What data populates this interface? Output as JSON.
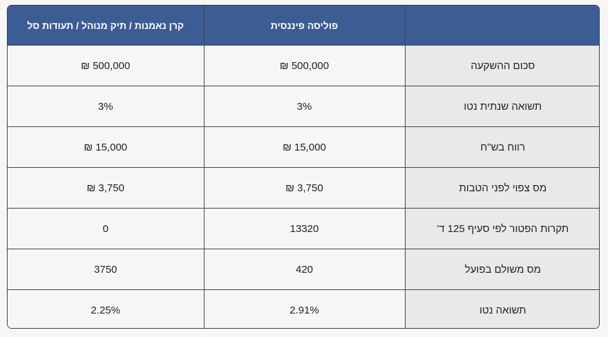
{
  "table": {
    "headers": [
      "",
      "פוליסה פיננסית",
      "קרן נאמנות / תיק מנוהל / תעודות סל"
    ],
    "rows": [
      {
        "label": "סכום ההשקעה",
        "policy": "500,000 ₪",
        "fund": "500,000 ₪"
      },
      {
        "label": "תשואה שנתית נטו",
        "policy": "3%",
        "fund": "3%"
      },
      {
        "label": "רווח בש\"ח",
        "policy": "15,000 ₪",
        "fund": "15,000 ₪"
      },
      {
        "label": "מס צפוי לפני הטבות",
        "policy": "3,750 ₪",
        "fund": "3,750 ₪"
      },
      {
        "label": "תקרות הפטור לפי סעיף 125 ד'",
        "policy": "13320",
        "fund": "0"
      },
      {
        "label": "מס משולם בפועל",
        "policy": "420",
        "fund": "3750"
      },
      {
        "label": "תשואה נטו",
        "policy": "2.91%",
        "fund": "2.25%"
      }
    ]
  }
}
